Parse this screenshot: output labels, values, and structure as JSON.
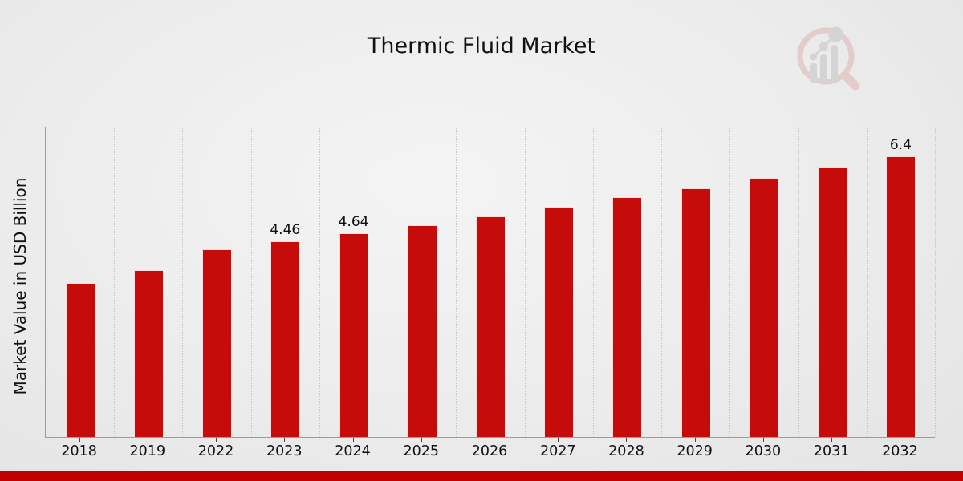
{
  "page": {
    "title": "Thermic Fluid Market"
  },
  "watermark": {
    "name": "magnifier-bar-chart-logo"
  },
  "chart_data": {
    "type": "bar",
    "title": "Thermic Fluid Market",
    "xlabel": "",
    "ylabel": "Market Value in USD Billion",
    "categories": [
      "2018",
      "2019",
      "2022",
      "2023",
      "2024",
      "2025",
      "2026",
      "2027",
      "2028",
      "2029",
      "2030",
      "2031",
      "2032"
    ],
    "values": [
      3.51,
      3.8,
      4.28,
      4.46,
      4.64,
      4.83,
      5.03,
      5.25,
      5.46,
      5.67,
      5.91,
      6.16,
      6.4
    ],
    "data_labels": [
      "",
      "",
      "",
      "4.46",
      "4.64",
      "",
      "",
      "",
      "",
      "",
      "",
      "",
      "6.4"
    ],
    "ylim": [
      0,
      7.07
    ],
    "grid": "vertical-dotted",
    "legend": "none",
    "bar_color": "#c60b0b",
    "accent_color": "#c10000",
    "axis_color": "#9c9c9c",
    "gridline_color": "#c6c6c6",
    "text_color": "#111111"
  }
}
